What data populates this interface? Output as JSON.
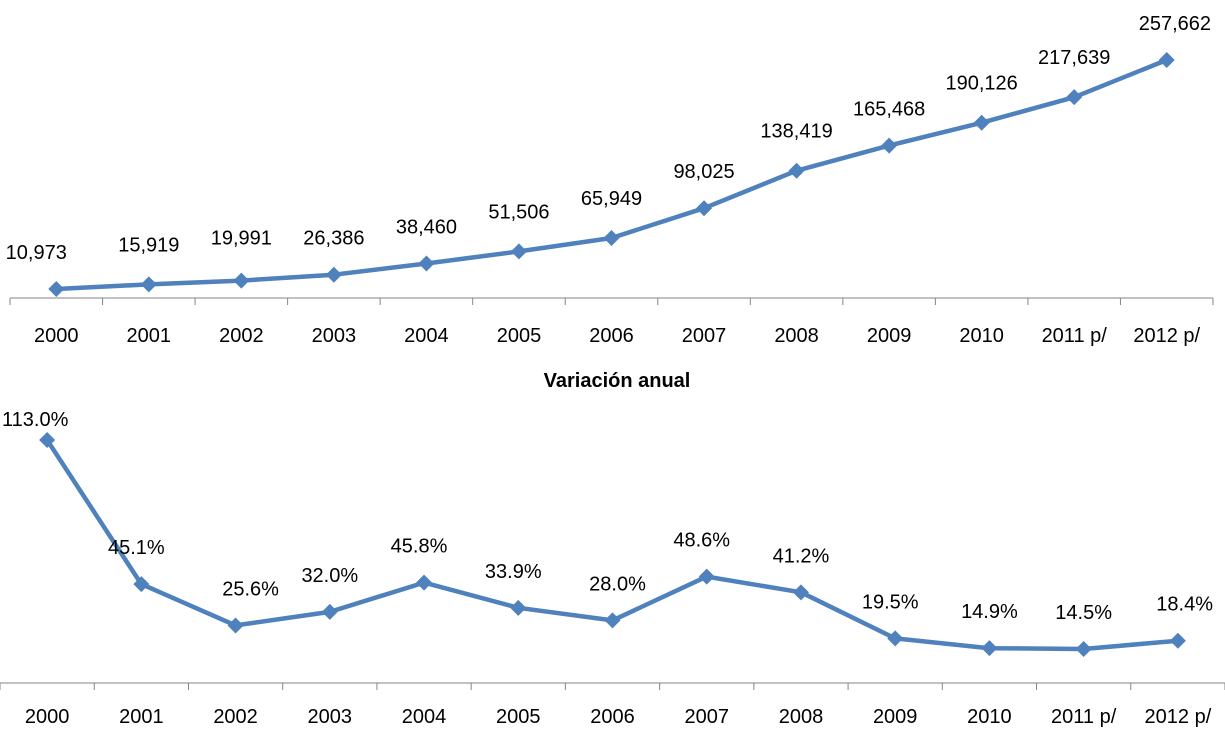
{
  "chart_data": [
    {
      "type": "line",
      "title": "",
      "xlabel": "",
      "ylabel": "",
      "categories": [
        "2000",
        "2001",
        "2002",
        "2003",
        "2004",
        "2005",
        "2006",
        "2007",
        "2008",
        "2009",
        "2010",
        "2011 p/",
        "2012 p/"
      ],
      "series": [
        {
          "values": [
            10973,
            15919,
            19991,
            26386,
            38460,
            51506,
            65949,
            98025,
            138419,
            165468,
            190126,
            217639,
            257662
          ],
          "data_labels": [
            "10,973",
            "15,919",
            "19,991",
            "26,386",
            "38,460",
            "51,506",
            "65,949",
            "98,025",
            "138,419",
            "165,468",
            "190,126",
            "217,639",
            "257,662"
          ],
          "color": "#4f81bd",
          "marker": "diamond"
        }
      ],
      "grid": false,
      "legend": "none"
    },
    {
      "type": "line",
      "title": "Variación anual",
      "xlabel": "",
      "ylabel": "",
      "categories": [
        "2000",
        "2001",
        "2002",
        "2003",
        "2004",
        "2005",
        "2006",
        "2007",
        "2008",
        "2009",
        "2010",
        "2011 p/",
        "2012 p/"
      ],
      "series": [
        {
          "values": [
            113.0,
            45.1,
            25.6,
            32.0,
            45.8,
            33.9,
            28.0,
            48.6,
            41.2,
            19.5,
            14.9,
            14.5,
            18.4
          ],
          "data_labels": [
            "113.0%",
            "45.1%",
            "25.6%",
            "32.0%",
            "45.8%",
            "33.9%",
            "28.0%",
            "48.6%",
            "41.2%",
            "19.5%",
            "14.9%",
            "14.5%",
            "18.4%"
          ],
          "color": "#4f81bd",
          "marker": "diamond"
        }
      ],
      "grid": false,
      "legend": "none"
    }
  ]
}
